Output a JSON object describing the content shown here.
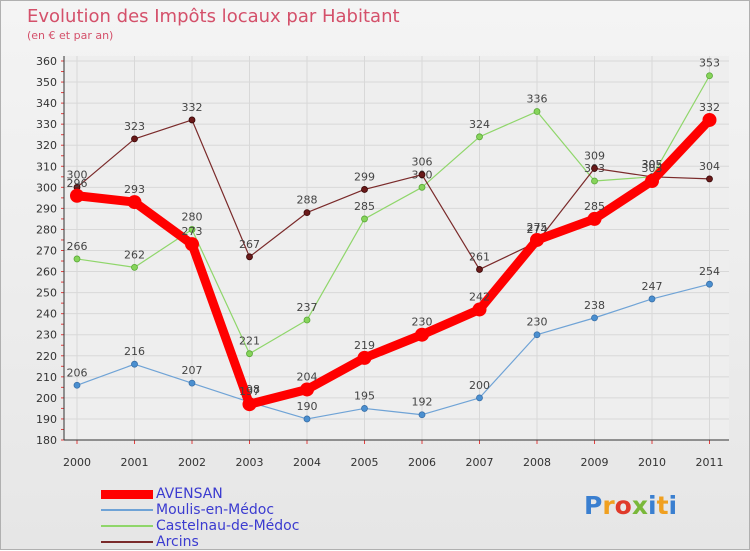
{
  "title": "Evolution des Impôts locaux par Habitant",
  "subtitle": "(en € et par an)",
  "logo_text": "Proxiti",
  "chart_data": {
    "type": "line",
    "title": "Evolution des Impôts locaux par Habitant",
    "subtitle": "(en € et par an)",
    "x": [
      "2000",
      "2001",
      "2002",
      "2003",
      "2004",
      "2005",
      "2006",
      "2007",
      "2008",
      "2009",
      "2010",
      "2011"
    ],
    "ylim": [
      180,
      360
    ],
    "yticks": [
      180,
      190,
      200,
      210,
      220,
      230,
      240,
      250,
      260,
      270,
      280,
      290,
      300,
      310,
      320,
      330,
      340,
      350,
      360
    ],
    "grid": true,
    "legend_position": "bottom-left",
    "series": [
      {
        "name": "AVENSAN",
        "color": "#ff0000",
        "values": [
          296,
          293,
          273,
          197,
          204,
          219,
          230,
          242,
          275,
          285,
          303,
          332
        ]
      },
      {
        "name": "Moulis-en-Médoc",
        "color": "#6fa3d6",
        "values": [
          206,
          216,
          207,
          198,
          190,
          195,
          192,
          200,
          230,
          238,
          247,
          254
        ]
      },
      {
        "name": "Castelnau-de-Médoc",
        "color": "#8fd66a",
        "values": [
          266,
          262,
          280,
          221,
          237,
          285,
          300,
          324,
          336,
          303,
          305,
          353
        ]
      },
      {
        "name": "Arcins",
        "color": "#7a2a2a",
        "values": [
          300,
          323,
          332,
          267,
          288,
          299,
          306,
          261,
          274,
          309,
          305,
          304
        ]
      }
    ]
  }
}
